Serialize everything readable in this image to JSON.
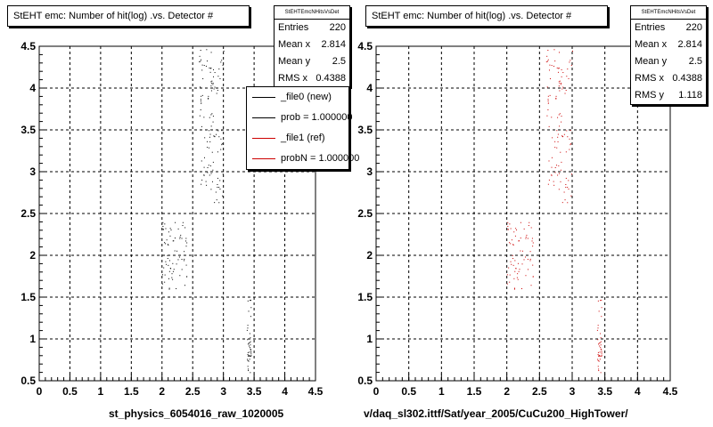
{
  "colors": {
    "file0": "#000000",
    "file1": "#cc0000"
  },
  "panels": [
    {
      "title": "StEHT emc: Number of hit(log) .vs. Detector #",
      "xlabel": "st_physics_6054016_raw_1020005",
      "stats": {
        "name": "StEHTEmcNHitsVsDet",
        "rows": [
          {
            "k": "Entries",
            "v": "220"
          },
          {
            "k": "Mean x",
            "v": "2.814"
          },
          {
            "k": "Mean y",
            "v": "2.5"
          },
          {
            "k": "RMS x",
            "v": "0.4388"
          }
        ]
      },
      "legend": {
        "items": [
          {
            "label": "_file0 (new)",
            "color": "#000000"
          },
          {
            "label": "prob = 1.000000",
            "color": "#000000"
          },
          {
            "label": "_file1 (ref)",
            "color": "#cc0000"
          },
          {
            "label": "probN = 1.000000",
            "color": "#cc0000"
          }
        ]
      }
    },
    {
      "title": "StEHT emc: Number of hit(log) .vs. Detector #",
      "xlabel": "v/daq_sl302.ittf/Sat/year_2005/CuCu200_HighTower/",
      "stats": {
        "name": "StEHTEmcNHitsVsDet",
        "rows": [
          {
            "k": "Entries",
            "v": "220"
          },
          {
            "k": "Mean x",
            "v": "2.814"
          },
          {
            "k": "Mean y",
            "v": "2.5"
          },
          {
            "k": "RMS x",
            "v": "0.4388"
          },
          {
            "k": "RMS y",
            "v": "1.118"
          }
        ]
      }
    }
  ],
  "chart_data": [
    {
      "type": "scatter",
      "title": "StEHT emc: Number of hit(log) .vs. Detector #",
      "xlabel": "st_physics_6054016_raw_1020005",
      "xlim": [
        0,
        4.5
      ],
      "ylim": [
        0.5,
        4.5
      ],
      "xticks": [
        "0",
        "0.5",
        "1",
        "1.5",
        "2",
        "2.5",
        "3",
        "3.5",
        "4",
        "4.5"
      ],
      "yticks": [
        "0.5",
        "1",
        "1.5",
        "2",
        "2.5",
        "3",
        "3.5",
        "4",
        "4.5"
      ],
      "grid": true,
      "legend_position": "top-right",
      "series": [
        {
          "name": "_file0 (new)",
          "color": "#000000",
          "clusters": [
            {
              "x": [
                2.6,
                3.0
              ],
              "y": [
                2.6,
                4.5
              ]
            },
            {
              "x": [
                2.0,
                2.4
              ],
              "y": [
                1.6,
                2.4
              ]
            },
            {
              "x": [
                3.38,
                3.45
              ],
              "y": [
                0.6,
                1.5
              ]
            }
          ]
        }
      ]
    },
    {
      "type": "scatter",
      "title": "StEHT emc: Number of hit(log) .vs. Detector #",
      "xlabel": "v/daq_sl302.ittf/Sat/year_2005/CuCu200_HighTower/",
      "xlim": [
        0,
        4.5
      ],
      "ylim": [
        0.5,
        4.5
      ],
      "xticks": [
        "0",
        "0.5",
        "1",
        "1.5",
        "2",
        "2.5",
        "3",
        "3.5",
        "4",
        "4.5"
      ],
      "yticks": [
        "0.5",
        "1",
        "1.5",
        "2",
        "2.5",
        "3",
        "3.5",
        "4",
        "4.5"
      ],
      "grid": true,
      "series": [
        {
          "name": "_file1 (ref)",
          "color": "#cc0000",
          "clusters": [
            {
              "x": [
                2.6,
                3.0
              ],
              "y": [
                2.6,
                4.5
              ]
            },
            {
              "x": [
                2.0,
                2.4
              ],
              "y": [
                1.6,
                2.4
              ]
            },
            {
              "x": [
                3.38,
                3.45
              ],
              "y": [
                0.6,
                1.5
              ]
            }
          ]
        }
      ]
    }
  ]
}
